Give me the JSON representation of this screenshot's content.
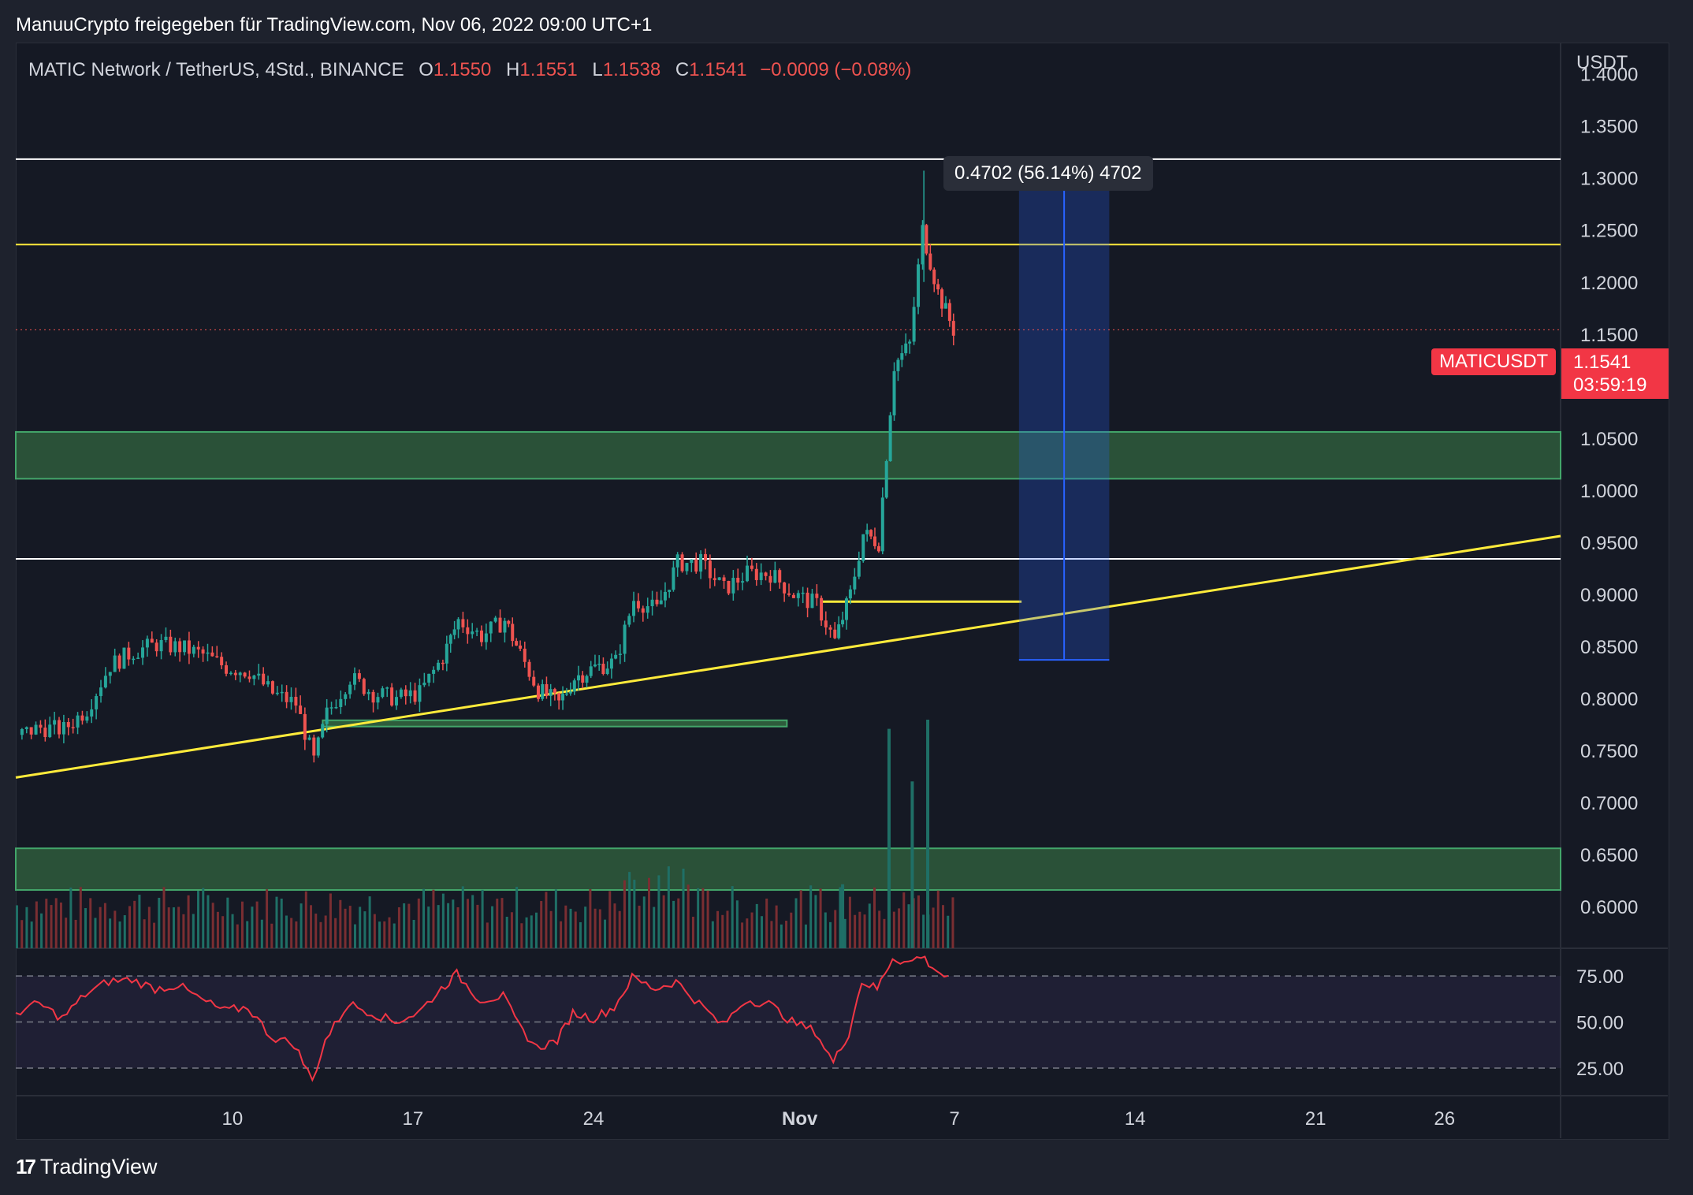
{
  "attribution": "ManuuCrypto freigegeben für TradingView.com, Nov 06, 2022 09:00 UTC+1",
  "header": {
    "symbol": "MATIC Network / TetherUS, 4Std., BINANCE",
    "open_label": "O",
    "open": "1.1550",
    "high_label": "H",
    "high": "1.1551",
    "low_label": "L",
    "low": "1.1538",
    "close_label": "C",
    "close": "1.1541",
    "change": "−0.0009 (−0.08%)"
  },
  "currency": "USDT",
  "measure_label": "0.4702 (56.14%) 4702",
  "price_tag": {
    "symbol": "MATICUSDT",
    "price": "1.1541",
    "countdown": "03:59:19"
  },
  "brand": "TradingView",
  "colors": {
    "up": "#26a69a",
    "down": "#ef5350",
    "trendline": "#ffeb3b",
    "zone": "#2e5c3c",
    "measure": "#2962ff",
    "rsi": "#f23645",
    "background": "#151924"
  },
  "chart_data": {
    "type": "candlestick",
    "ylim": [
      0.56,
      1.43
    ],
    "y_ticks": [
      "1.4000",
      "1.3500",
      "1.3000",
      "1.2500",
      "1.2000",
      "1.1500",
      "1.1000",
      "1.0500",
      "1.0000",
      "0.9500",
      "0.9000",
      "0.8500",
      "0.8000",
      "0.7500",
      "0.7000",
      "0.6500",
      "0.6000"
    ],
    "x_ticks": [
      {
        "label": "10",
        "day": 10
      },
      {
        "label": "17",
        "day": 17
      },
      {
        "label": "24",
        "day": 24
      },
      {
        "label": "Nov",
        "day": 32
      },
      {
        "label": "7",
        "day": 38
      },
      {
        "label": "14",
        "day": 45
      },
      {
        "label": "21",
        "day": 52
      },
      {
        "label": "26",
        "day": 57
      }
    ],
    "x_start_day": 1.6,
    "x_end_day": 61.5,
    "last_price": 1.1541,
    "horizontal_levels": [
      {
        "value": 1.318,
        "color": "#ffffff"
      },
      {
        "value": 1.236,
        "color": "#ffeb3b"
      },
      {
        "value": 0.934,
        "color": "#ffffff"
      }
    ],
    "zones": [
      {
        "from": 1.011,
        "to": 1.056
      },
      {
        "from": 0.616,
        "to": 0.656
      }
    ],
    "small_zone": {
      "from_day": 13.5,
      "to_day": 31.5,
      "low": 0.773,
      "high": 0.779
    },
    "trendline": {
      "x1_day": 1.6,
      "y1": 0.724,
      "x2_day": 61.5,
      "y2": 0.956
    },
    "short_level": {
      "from_day": 32.8,
      "to_day": 40.6,
      "value": 0.893
    },
    "measure_box": {
      "from_day": 40.5,
      "to_day": 44.0,
      "low": 0.837,
      "high": 1.307
    },
    "price_path": [
      [
        1.6,
        0.765
      ],
      [
        2.5,
        0.772
      ],
      [
        3.4,
        0.77
      ],
      [
        4.3,
        0.79
      ],
      [
        5.2,
        0.832
      ],
      [
        6.1,
        0.845
      ],
      [
        7.0,
        0.852
      ],
      [
        7.9,
        0.849
      ],
      [
        8.8,
        0.842
      ],
      [
        9.7,
        0.83
      ],
      [
        10.6,
        0.826
      ],
      [
        11.5,
        0.805
      ],
      [
        12.4,
        0.795
      ],
      [
        13.1,
        0.74
      ],
      [
        13.6,
        0.785
      ],
      [
        14.5,
        0.82
      ],
      [
        15.4,
        0.805
      ],
      [
        16.3,
        0.8
      ],
      [
        17.2,
        0.805
      ],
      [
        18.1,
        0.84
      ],
      [
        18.7,
        0.875
      ],
      [
        19.6,
        0.86
      ],
      [
        20.5,
        0.875
      ],
      [
        21.1,
        0.843
      ],
      [
        21.8,
        0.808
      ],
      [
        22.6,
        0.795
      ],
      [
        23.2,
        0.82
      ],
      [
        24.0,
        0.83
      ],
      [
        24.8,
        0.835
      ],
      [
        25.5,
        0.895
      ],
      [
        26.4,
        0.885
      ],
      [
        27.2,
        0.93
      ],
      [
        28.1,
        0.93
      ],
      [
        29.0,
        0.905
      ],
      [
        29.9,
        0.92
      ],
      [
        30.8,
        0.92
      ],
      [
        31.7,
        0.9
      ],
      [
        32.6,
        0.89
      ],
      [
        33.3,
        0.855
      ],
      [
        33.9,
        0.9
      ],
      [
        34.4,
        0.958
      ],
      [
        35.0,
        0.95
      ],
      [
        35.6,
        1.12
      ],
      [
        36.2,
        1.14
      ],
      [
        36.7,
        1.25
      ],
      [
        37.3,
        1.19
      ],
      [
        37.9,
        1.154
      ]
    ],
    "volume_bars": [
      {
        "day": 33.6,
        "height_frac": 0.28
      },
      {
        "day": 35.4,
        "height_frac": 0.96
      },
      {
        "day": 36.3,
        "height_frac": 0.73
      },
      {
        "day": 36.9,
        "height_frac": 1.0
      }
    ],
    "rsi": {
      "levels": [
        75,
        50,
        25
      ],
      "tick_labels": [
        "75.00",
        "50.00",
        "25.00"
      ],
      "ylim": [
        10,
        90
      ],
      "path": [
        [
          1.6,
          55
        ],
        [
          2.5,
          60
        ],
        [
          3.4,
          52
        ],
        [
          4.3,
          65
        ],
        [
          5.2,
          72
        ],
        [
          6.1,
          73
        ],
        [
          7.0,
          68
        ],
        [
          7.9,
          70
        ],
        [
          8.8,
          62
        ],
        [
          9.7,
          56
        ],
        [
          10.6,
          58
        ],
        [
          11.5,
          42
        ],
        [
          12.4,
          38
        ],
        [
          13.1,
          18
        ],
        [
          13.6,
          40
        ],
        [
          14.5,
          60
        ],
        [
          15.4,
          55
        ],
        [
          16.3,
          50
        ],
        [
          17.2,
          55
        ],
        [
          18.1,
          68
        ],
        [
          18.7,
          76
        ],
        [
          19.6,
          62
        ],
        [
          20.5,
          64
        ],
        [
          21.1,
          48
        ],
        [
          21.8,
          36
        ],
        [
          22.6,
          40
        ],
        [
          23.2,
          55
        ],
        [
          24.0,
          52
        ],
        [
          24.8,
          58
        ],
        [
          25.5,
          74
        ],
        [
          26.4,
          68
        ],
        [
          27.2,
          72
        ],
        [
          28.1,
          60
        ],
        [
          29.0,
          48
        ],
        [
          29.9,
          62
        ],
        [
          30.8,
          60
        ],
        [
          31.7,
          50
        ],
        [
          32.6,
          45
        ],
        [
          33.3,
          28
        ],
        [
          33.9,
          44
        ],
        [
          34.4,
          72
        ],
        [
          35.0,
          68
        ],
        [
          35.6,
          85
        ],
        [
          36.2,
          82
        ],
        [
          36.7,
          86
        ],
        [
          37.3,
          78
        ],
        [
          37.9,
          72
        ]
      ]
    }
  }
}
